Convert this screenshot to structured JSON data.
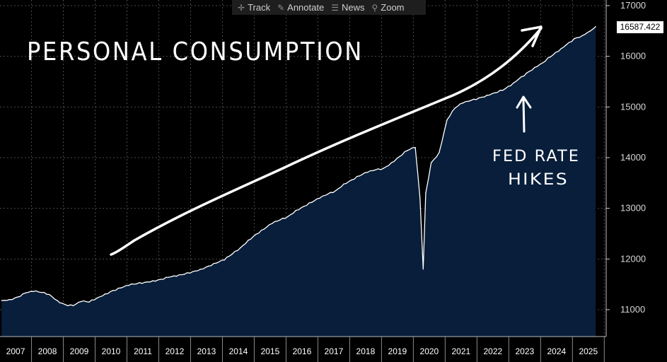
{
  "toolbar": {
    "track": {
      "label": "Track",
      "icon": "crosshair-icon"
    },
    "annotate": {
      "label": "Annotate",
      "icon": "pencil-icon"
    },
    "news": {
      "label": "News",
      "icon": "news-icon"
    },
    "zoom": {
      "label": "Zoom",
      "icon": "magnifier-icon"
    }
  },
  "last_value_tag": "16587.422",
  "annotations": {
    "headline": "PERSONAL CONSUMPTION",
    "rate_line1": "FED RATE",
    "rate_line2": "HIKES"
  },
  "colors": {
    "background": "#000000",
    "area_fill": "#081e3a",
    "line": "#ffffff",
    "grid": "#4a4a4a",
    "axis": "#d0d0d0"
  },
  "chart_data": {
    "type": "area",
    "title": "",
    "xlabel": "",
    "ylabel": "",
    "ylim": [
      10500,
      17000
    ],
    "y_ticks": [
      11000,
      12000,
      13000,
      14000,
      15000,
      16000,
      17000
    ],
    "x_ticks": [
      "2007",
      "2008",
      "2009",
      "2010",
      "2011",
      "2012",
      "2013",
      "2014",
      "2015",
      "2016",
      "2017",
      "2018",
      "2019",
      "2020",
      "2021",
      "2022",
      "2023",
      "2024",
      "2025"
    ],
    "grid": true,
    "y_axis_side": "right",
    "series": [
      {
        "x": [
          2007.0,
          2007.25,
          2007.5,
          2007.75,
          2008.0,
          2008.25,
          2008.5,
          2008.75,
          2009.0,
          2009.25,
          2009.5,
          2009.75,
          2010.0,
          2010.25,
          2010.5,
          2010.75,
          2011.0,
          2011.25,
          2011.5,
          2011.75,
          2012.0,
          2012.25,
          2012.5,
          2012.75,
          2013.0,
          2013.25,
          2013.5,
          2013.75,
          2014.0,
          2014.25,
          2014.5,
          2014.75,
          2015.0,
          2015.25,
          2015.5,
          2015.75,
          2016.0,
          2016.25,
          2016.5,
          2016.75,
          2017.0,
          2017.25,
          2017.5,
          2017.75,
          2018.0,
          2018.25,
          2018.5,
          2018.75,
          2019.0,
          2019.25,
          2019.5,
          2019.75,
          2020.0,
          2020.15,
          2020.25,
          2020.33,
          2020.5,
          2020.75,
          2021.0,
          2021.25,
          2021.5,
          2021.75,
          2022.0,
          2022.25,
          2022.5,
          2022.75,
          2023.0,
          2023.25,
          2023.5,
          2023.75,
          2024.0,
          2024.25,
          2024.5,
          2024.75,
          2025.0,
          2025.25,
          2025.5,
          2025.67
        ],
        "values": [
          11180,
          11200,
          11250,
          11330,
          11360,
          11340,
          11300,
          11180,
          11100,
          11080,
          11160,
          11150,
          11230,
          11310,
          11380,
          11430,
          11480,
          11510,
          11540,
          11570,
          11600,
          11640,
          11660,
          11700,
          11750,
          11800,
          11860,
          11920,
          11980,
          12100,
          12220,
          12370,
          12490,
          12590,
          12700,
          12770,
          12840,
          12960,
          13040,
          13120,
          13200,
          13280,
          13350,
          13480,
          13560,
          13640,
          13710,
          13760,
          13790,
          13900,
          14020,
          14140,
          14200,
          13200,
          11800,
          13300,
          13900,
          14100,
          14750,
          14980,
          15080,
          15130,
          15180,
          15230,
          15280,
          15330,
          15420,
          15550,
          15670,
          15780,
          15870,
          15990,
          16100,
          16230,
          16350,
          16410,
          16500,
          16587
        ]
      }
    ]
  }
}
